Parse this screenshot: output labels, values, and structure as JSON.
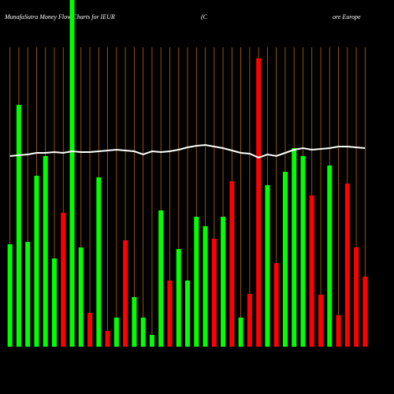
{
  "chart_data": {
    "type": "bar",
    "title": "MunafaSutra  Money Flow  Charts for IEUR",
    "title_parts": [
      "(C",
      "ore  Europe"
    ],
    "background": "#000000",
    "grid_color": "#b86a00",
    "categories": [
      null,
      null,
      null,
      null,
      null,
      null,
      null,
      null,
      null,
      null,
      null,
      null,
      null,
      null,
      null,
      null,
      null,
      null,
      null,
      null,
      null,
      null,
      null,
      null,
      null,
      null,
      null,
      null,
      null,
      null,
      null,
      null,
      null,
      null,
      null,
      null,
      null,
      null,
      null,
      null,
      null
    ],
    "ylim": [
      0,
      440
    ],
    "grid": true,
    "series": [
      {
        "type": "bar",
        "values": [
          130,
          307,
          133,
          217,
          242,
          112,
          170,
          440,
          126,
          43,
          215,
          20,
          37,
          135,
          63,
          37,
          15,
          173,
          84,
          124,
          84,
          165,
          153,
          137,
          165,
          210,
          37,
          67,
          366,
          205,
          106,
          222,
          252,
          242,
          192,
          66,
          230,
          40,
          207,
          126,
          89
        ],
        "colors": [
          "#00ff00",
          "#00ff00",
          "#00ff00",
          "#00ff00",
          "#00ff00",
          "#00ff00",
          "#ff0000",
          "#00ff00",
          "#00ff00",
          "#ff0000",
          "#00ff00",
          "#ff0000",
          "#00ff00",
          "#ff0000",
          "#00ff00",
          "#00ff00",
          "#00ff00",
          "#00ff00",
          "#ff0000",
          "#00ff00",
          "#00ff00",
          "#00ff00",
          "#00ff00",
          "#ff0000",
          "#00ff00",
          "#ff0000",
          "#00ff00",
          "#ff0000",
          "#ff0000",
          "#00ff00",
          "#ff0000",
          "#00ff00",
          "#00ff00",
          "#00ff00",
          "#ff0000",
          "#ff0000",
          "#00ff00",
          "#ff0000",
          "#ff0000",
          "#ff0000",
          "#ff0000"
        ]
      },
      {
        "type": "line",
        "color": "#ffffff",
        "values": [
          242,
          243,
          244,
          246,
          246,
          247,
          246,
          248,
          247,
          247,
          248,
          249,
          250,
          249,
          248,
          244,
          248,
          247,
          248,
          250,
          253,
          255,
          256,
          254,
          252,
          249,
          246,
          245,
          240,
          244,
          242,
          246,
          250,
          252,
          250,
          251,
          252,
          254,
          254,
          253,
          252
        ]
      }
    ]
  }
}
